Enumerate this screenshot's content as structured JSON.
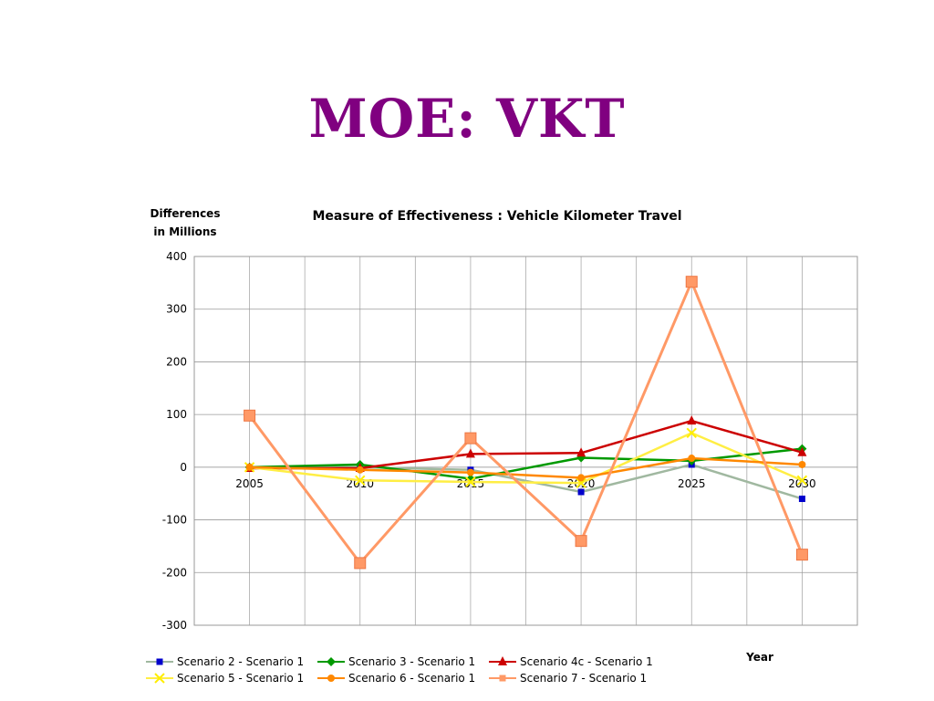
{
  "slide": {
    "title": "MOE: VKT"
  },
  "chart_data": {
    "type": "line",
    "title": "Measure of Effectiveness : Vehicle Kilometer Travel",
    "ylabel": "Differences\nin Millions",
    "xlabel": "Year",
    "categories": [
      "2005",
      "2010",
      "2015",
      "2020",
      "2025",
      "2030"
    ],
    "ylim": [
      -300,
      400
    ],
    "yticks": [
      400,
      300,
      200,
      100,
      0,
      -100,
      -200,
      -300
    ],
    "grid": true,
    "legend_position": "bottom",
    "series": [
      {
        "name": "Scenario 2 - Scenario 1",
        "values": [
          0,
          0,
          -5,
          -47,
          5,
          -60
        ],
        "color": "#0000cc",
        "line": "#a0b8a0",
        "marker": "square"
      },
      {
        "name": "Scenario 3 - Scenario 1",
        "values": [
          0,
          5,
          -22,
          18,
          12,
          35
        ],
        "color": "#009900",
        "line": "#009900",
        "marker": "diamond"
      },
      {
        "name": "Scenario 4c - Scenario 1",
        "values": [
          -2,
          -2,
          25,
          27,
          88,
          28
        ],
        "color": "#cc0000",
        "line": "#cc0000",
        "marker": "triangle"
      },
      {
        "name": "Scenario 5 - Scenario 1",
        "values": [
          0,
          -25,
          -28,
          -30,
          65,
          -25
        ],
        "color": "#ffee00",
        "line": "#ffee44",
        "marker": "x"
      },
      {
        "name": "Scenario 6 - Scenario 1",
        "values": [
          0,
          -5,
          -10,
          -20,
          17,
          5
        ],
        "color": "#ff8800",
        "line": "#ff8800",
        "marker": "circle"
      },
      {
        "name": "Scenario 7 - Scenario 1",
        "values": [
          98,
          -182,
          55,
          -140,
          352,
          -166
        ],
        "color": "#ff9966",
        "line": "#ff9966",
        "marker": "bigsquare"
      }
    ]
  }
}
